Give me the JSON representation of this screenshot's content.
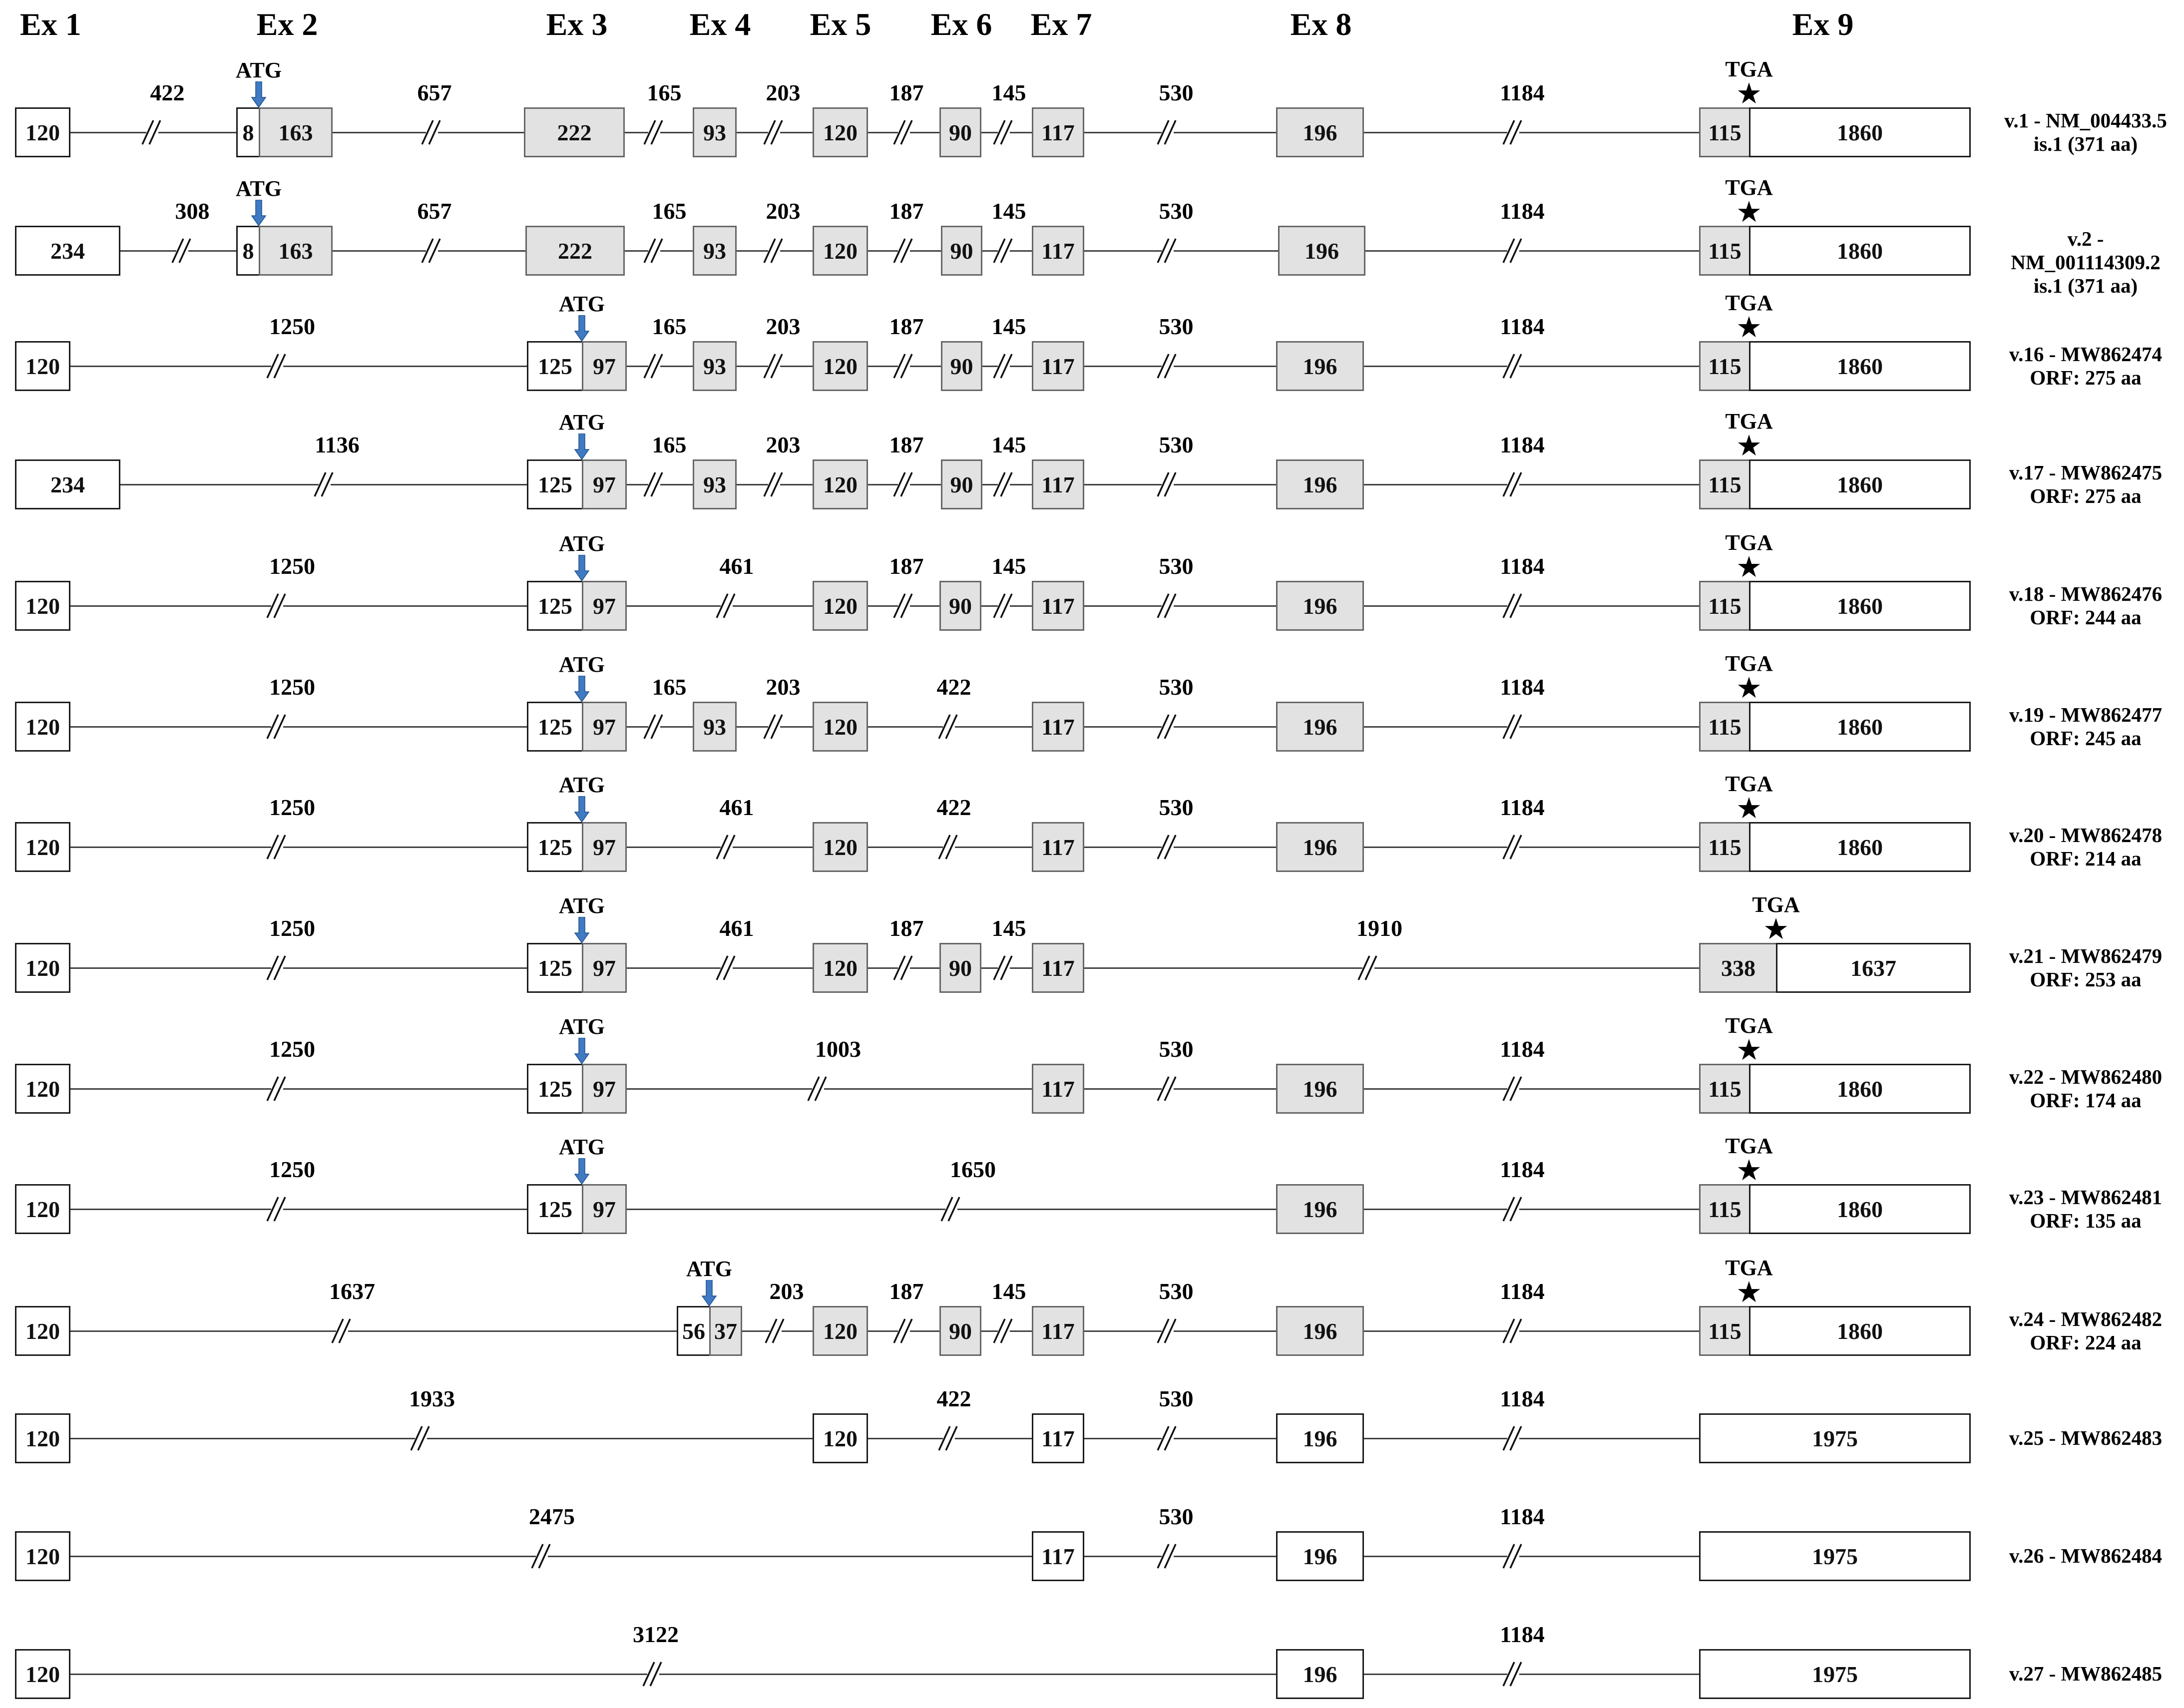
{
  "exon_headers": [
    "Ex 1",
    "Ex 2",
    "Ex 3",
    "Ex 4",
    "Ex 5",
    "Ex 6",
    "Ex 7",
    "Ex 8",
    "Ex 9"
  ],
  "markers": {
    "start": "ATG",
    "stop": "TGA",
    "stop_symbol": "★"
  },
  "colors": {
    "cds": "#e2e2e2",
    "utr": "#ffffff",
    "arrow": "#3f7ac2"
  },
  "variants": [
    {
      "id": "v1",
      "label_line1": "v.1 - NM_004433.5",
      "label_line2": "is.1 (371 aa)",
      "exons": [
        [
          "120",
          "u"
        ],
        [
          "8",
          "u"
        ],
        [
          "163",
          "c"
        ],
        [
          "222",
          "c"
        ],
        [
          "93",
          "c"
        ],
        [
          "120",
          "c"
        ],
        [
          "90",
          "c"
        ],
        [
          "117",
          "c"
        ],
        [
          "196",
          "c"
        ],
        [
          "115",
          "c"
        ],
        [
          "1860",
          "u"
        ]
      ],
      "introns": [
        "422",
        "657",
        "165",
        "203",
        "187",
        "145",
        "530",
        "1184"
      ]
    },
    {
      "id": "v2",
      "label_line1": "v.2 - NM_001114309.2",
      "label_line2": "is.1 (371 aa)",
      "exons": [
        [
          "234",
          "u"
        ],
        [
          "8",
          "u"
        ],
        [
          "163",
          "c"
        ],
        [
          "222",
          "c"
        ],
        [
          "93",
          "c"
        ],
        [
          "120",
          "c"
        ],
        [
          "90",
          "c"
        ],
        [
          "117",
          "c"
        ],
        [
          "196",
          "c"
        ],
        [
          "115",
          "c"
        ],
        [
          "1860",
          "u"
        ]
      ],
      "introns": [
        "308",
        "657",
        "165",
        "203",
        "187",
        "145",
        "530",
        "1184"
      ]
    },
    {
      "id": "v16",
      "label_line1": "v.16 - MW862474",
      "label_line2": "ORF: 275 aa",
      "exons": [
        [
          "120",
          "u"
        ],
        [
          "125",
          "u"
        ],
        [
          "97",
          "c"
        ],
        [
          "93",
          "c"
        ],
        [
          "120",
          "c"
        ],
        [
          "90",
          "c"
        ],
        [
          "117",
          "c"
        ],
        [
          "196",
          "c"
        ],
        [
          "115",
          "c"
        ],
        [
          "1860",
          "u"
        ]
      ],
      "introns": [
        "1250",
        "165",
        "203",
        "187",
        "145",
        "530",
        "1184"
      ]
    },
    {
      "id": "v17",
      "label_line1": "v.17 - MW862475",
      "label_line2": "ORF: 275 aa",
      "exons": [
        [
          "234",
          "u"
        ],
        [
          "125",
          "u"
        ],
        [
          "97",
          "c"
        ],
        [
          "93",
          "c"
        ],
        [
          "120",
          "c"
        ],
        [
          "90",
          "c"
        ],
        [
          "117",
          "c"
        ],
        [
          "196",
          "c"
        ],
        [
          "115",
          "c"
        ],
        [
          "1860",
          "u"
        ]
      ],
      "introns": [
        "1136",
        "165",
        "203",
        "187",
        "145",
        "530",
        "1184"
      ]
    },
    {
      "id": "v18",
      "label_line1": "v.18 - MW862476",
      "label_line2": "ORF: 244 aa",
      "exons": [
        [
          "120",
          "u"
        ],
        [
          "125",
          "u"
        ],
        [
          "97",
          "c"
        ],
        [
          "120",
          "c"
        ],
        [
          "90",
          "c"
        ],
        [
          "117",
          "c"
        ],
        [
          "196",
          "c"
        ],
        [
          "115",
          "c"
        ],
        [
          "1860",
          "u"
        ]
      ],
      "introns": [
        "1250",
        "461",
        "187",
        "145",
        "530",
        "1184"
      ]
    },
    {
      "id": "v19",
      "label_line1": "v.19 - MW862477",
      "label_line2": "ORF: 245 aa",
      "exons": [
        [
          "120",
          "u"
        ],
        [
          "125",
          "u"
        ],
        [
          "97",
          "c"
        ],
        [
          "93",
          "c"
        ],
        [
          "120",
          "c"
        ],
        [
          "117",
          "c"
        ],
        [
          "196",
          "c"
        ],
        [
          "115",
          "c"
        ],
        [
          "1860",
          "u"
        ]
      ],
      "introns": [
        "1250",
        "165",
        "203",
        "422",
        "530",
        "1184"
      ]
    },
    {
      "id": "v20",
      "label_line1": "v.20 - MW862478",
      "label_line2": "ORF: 214 aa",
      "exons": [
        [
          "120",
          "u"
        ],
        [
          "125",
          "u"
        ],
        [
          "97",
          "c"
        ],
        [
          "120",
          "c"
        ],
        [
          "117",
          "c"
        ],
        [
          "196",
          "c"
        ],
        [
          "115",
          "c"
        ],
        [
          "1860",
          "u"
        ]
      ],
      "introns": [
        "1250",
        "461",
        "422",
        "530",
        "1184"
      ]
    },
    {
      "id": "v21",
      "label_line1": "v.21 - MW862479",
      "label_line2": "ORF: 253 aa",
      "exons": [
        [
          "120",
          "u"
        ],
        [
          "125",
          "u"
        ],
        [
          "97",
          "c"
        ],
        [
          "120",
          "c"
        ],
        [
          "90",
          "c"
        ],
        [
          "117",
          "c"
        ],
        [
          "338",
          "c"
        ],
        [
          "1637",
          "u"
        ]
      ],
      "introns": [
        "1250",
        "461",
        "187",
        "145",
        "1910"
      ]
    },
    {
      "id": "v22",
      "label_line1": "v.22 - MW862480",
      "label_line2": "ORF: 174 aa",
      "exons": [
        [
          "120",
          "u"
        ],
        [
          "125",
          "u"
        ],
        [
          "97",
          "c"
        ],
        [
          "117",
          "c"
        ],
        [
          "196",
          "c"
        ],
        [
          "115",
          "c"
        ],
        [
          "1860",
          "u"
        ]
      ],
      "introns": [
        "1250",
        "1003",
        "530",
        "1184"
      ]
    },
    {
      "id": "v23",
      "label_line1": "v.23 - MW862481",
      "label_line2": "ORF: 135 aa",
      "exons": [
        [
          "120",
          "u"
        ],
        [
          "125",
          "u"
        ],
        [
          "97",
          "c"
        ],
        [
          "196",
          "c"
        ],
        [
          "115",
          "c"
        ],
        [
          "1860",
          "u"
        ]
      ],
      "introns": [
        "1250",
        "1650",
        "1184"
      ]
    },
    {
      "id": "v24",
      "label_line1": "v.24 - MW862482",
      "label_line2": "ORF: 224 aa",
      "exons": [
        [
          "120",
          "u"
        ],
        [
          "56",
          "u"
        ],
        [
          "37",
          "c"
        ],
        [
          "120",
          "c"
        ],
        [
          "90",
          "c"
        ],
        [
          "117",
          "c"
        ],
        [
          "196",
          "c"
        ],
        [
          "115",
          "c"
        ],
        [
          "1860",
          "u"
        ]
      ],
      "introns": [
        "1637",
        "203",
        "187",
        "145",
        "530",
        "1184"
      ]
    },
    {
      "id": "v25",
      "label_line1": "v.25 - MW862483",
      "label_line2": "",
      "exons": [
        [
          "120",
          "u"
        ],
        [
          "120",
          "u"
        ],
        [
          "117",
          "u"
        ],
        [
          "196",
          "u"
        ],
        [
          "1975",
          "u"
        ]
      ],
      "introns": [
        "1933",
        "422",
        "530",
        "1184"
      ]
    },
    {
      "id": "v26",
      "label_line1": "v.26 - MW862484",
      "label_line2": "",
      "exons": [
        [
          "120",
          "u"
        ],
        [
          "117",
          "u"
        ],
        [
          "196",
          "u"
        ],
        [
          "1975",
          "u"
        ]
      ],
      "introns": [
        "2475",
        "530",
        "1184"
      ]
    },
    {
      "id": "v27",
      "label_line1": "v.27 - MW862485",
      "label_line2": "",
      "exons": [
        [
          "120",
          "u"
        ],
        [
          "196",
          "u"
        ],
        [
          "1975",
          "u"
        ]
      ],
      "introns": [
        "3122",
        "1184"
      ]
    }
  ]
}
